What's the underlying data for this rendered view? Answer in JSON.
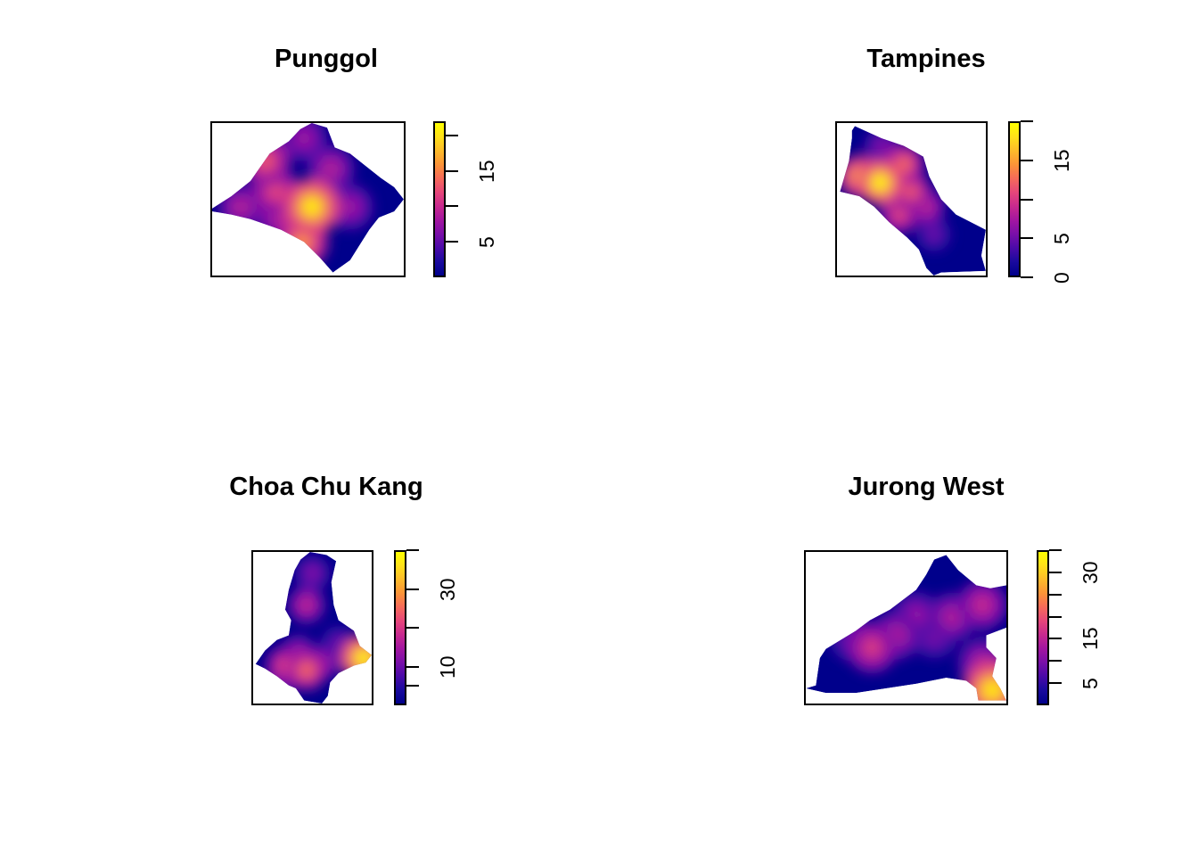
{
  "colors": {
    "palette": [
      "#00008B",
      "#1a0a9e",
      "#4b0aa8",
      "#7a0fa8",
      "#a316a0",
      "#c82a8e",
      "#e6467a",
      "#f66a5a",
      "#fb9338",
      "#fdbb2a",
      "#ffe01a",
      "#ffff00"
    ]
  },
  "chart_data": [
    {
      "type": "heatmap",
      "title": "Punggol",
      "legend": {
        "ticks": [
          5,
          10,
          15,
          20
        ],
        "labels": [
          "5",
          "",
          "15",
          ""
        ],
        "range": [
          0,
          22
        ]
      },
      "hotspots": [
        {
          "x": 0.52,
          "y": 0.55,
          "v": 21
        },
        {
          "x": 0.33,
          "y": 0.45,
          "v": 12
        },
        {
          "x": 0.47,
          "y": 0.78,
          "v": 16
        },
        {
          "x": 0.28,
          "y": 0.25,
          "v": 13
        },
        {
          "x": 0.72,
          "y": 0.55,
          "v": 8
        },
        {
          "x": 0.62,
          "y": 0.3,
          "v": 9
        },
        {
          "x": 0.48,
          "y": 0.1,
          "v": 8
        },
        {
          "x": 0.15,
          "y": 0.55,
          "v": 9
        },
        {
          "x": 0.35,
          "y": 0.6,
          "v": 10
        }
      ],
      "shape": [
        [
          0.0,
          0.56
        ],
        [
          0.1,
          0.48
        ],
        [
          0.2,
          0.38
        ],
        [
          0.3,
          0.2
        ],
        [
          0.4,
          0.12
        ],
        [
          0.46,
          0.04
        ],
        [
          0.52,
          0.0
        ],
        [
          0.6,
          0.03
        ],
        [
          0.64,
          0.16
        ],
        [
          0.72,
          0.2
        ],
        [
          0.8,
          0.28
        ],
        [
          0.88,
          0.36
        ],
        [
          0.95,
          0.42
        ],
        [
          1.0,
          0.5
        ],
        [
          0.95,
          0.58
        ],
        [
          0.87,
          0.62
        ],
        [
          0.82,
          0.7
        ],
        [
          0.77,
          0.8
        ],
        [
          0.72,
          0.9
        ],
        [
          0.63,
          0.98
        ],
        [
          0.56,
          0.88
        ],
        [
          0.48,
          0.78
        ],
        [
          0.36,
          0.7
        ],
        [
          0.2,
          0.63
        ],
        [
          0.1,
          0.6
        ],
        [
          0.0,
          0.58
        ]
      ]
    },
    {
      "type": "heatmap",
      "title": "Tampines",
      "legend": {
        "ticks": [
          0,
          5,
          10,
          15,
          20
        ],
        "labels": [
          "0",
          "5",
          "",
          "15",
          ""
        ],
        "range": [
          0,
          20
        ]
      },
      "hotspots": [
        {
          "x": 0.29,
          "y": 0.39,
          "v": 20
        },
        {
          "x": 0.15,
          "y": 0.35,
          "v": 16
        },
        {
          "x": 0.45,
          "y": 0.27,
          "v": 13
        },
        {
          "x": 0.5,
          "y": 0.45,
          "v": 12
        },
        {
          "x": 0.42,
          "y": 0.6,
          "v": 11
        },
        {
          "x": 0.6,
          "y": 0.55,
          "v": 9
        },
        {
          "x": 0.65,
          "y": 0.73,
          "v": 5
        },
        {
          "x": 0.3,
          "y": 0.15,
          "v": 6
        }
      ],
      "shape": [
        [
          0.1,
          0.05
        ],
        [
          0.12,
          0.02
        ],
        [
          0.3,
          0.1
        ],
        [
          0.45,
          0.15
        ],
        [
          0.58,
          0.22
        ],
        [
          0.62,
          0.35
        ],
        [
          0.7,
          0.5
        ],
        [
          0.8,
          0.6
        ],
        [
          1.0,
          0.7
        ],
        [
          0.97,
          0.87
        ],
        [
          1.0,
          0.97
        ],
        [
          0.7,
          0.98
        ],
        [
          0.65,
          1.0
        ],
        [
          0.6,
          0.95
        ],
        [
          0.55,
          0.83
        ],
        [
          0.47,
          0.75
        ],
        [
          0.35,
          0.65
        ],
        [
          0.25,
          0.55
        ],
        [
          0.15,
          0.48
        ],
        [
          0.02,
          0.45
        ],
        [
          0.08,
          0.25
        ],
        [
          0.1,
          0.1
        ]
      ]
    },
    {
      "type": "heatmap",
      "title": "Choa Chu Kang",
      "legend": {
        "ticks": [
          5,
          10,
          20,
          30,
          40
        ],
        "labels": [
          "",
          "10",
          "",
          "30",
          ""
        ],
        "range": [
          0,
          40
        ]
      },
      "hotspots": [
        {
          "x": 0.45,
          "y": 0.78,
          "v": 26
        },
        {
          "x": 0.27,
          "y": 0.75,
          "v": 22
        },
        {
          "x": 0.38,
          "y": 0.67,
          "v": 16
        },
        {
          "x": 0.6,
          "y": 0.72,
          "v": 14
        },
        {
          "x": 0.45,
          "y": 0.35,
          "v": 18
        },
        {
          "x": 0.5,
          "y": 0.14,
          "v": 12
        },
        {
          "x": 0.93,
          "y": 0.7,
          "v": 40
        },
        {
          "x": 0.72,
          "y": 0.6,
          "v": 10
        },
        {
          "x": 0.2,
          "y": 0.9,
          "v": 8
        }
      ],
      "shape": [
        [
          0.4,
          0.05
        ],
        [
          0.48,
          0.0
        ],
        [
          0.62,
          0.02
        ],
        [
          0.7,
          0.06
        ],
        [
          0.66,
          0.2
        ],
        [
          0.68,
          0.35
        ],
        [
          0.72,
          0.45
        ],
        [
          0.85,
          0.52
        ],
        [
          0.9,
          0.62
        ],
        [
          1.0,
          0.68
        ],
        [
          0.95,
          0.73
        ],
        [
          0.85,
          0.75
        ],
        [
          0.72,
          0.8
        ],
        [
          0.65,
          0.86
        ],
        [
          0.63,
          0.95
        ],
        [
          0.58,
          1.0
        ],
        [
          0.43,
          0.98
        ],
        [
          0.36,
          0.9
        ],
        [
          0.3,
          0.88
        ],
        [
          0.2,
          0.82
        ],
        [
          0.1,
          0.77
        ],
        [
          0.02,
          0.74
        ],
        [
          0.1,
          0.65
        ],
        [
          0.2,
          0.58
        ],
        [
          0.3,
          0.55
        ],
        [
          0.32,
          0.45
        ],
        [
          0.27,
          0.38
        ],
        [
          0.3,
          0.25
        ],
        [
          0.35,
          0.12
        ]
      ]
    },
    {
      "type": "heatmap",
      "title": "Jurong West",
      "legend": {
        "ticks": [
          5,
          10,
          15,
          20,
          25,
          30,
          35
        ],
        "labels": [
          "5",
          "",
          "15",
          "",
          "",
          "30",
          ""
        ],
        "range": [
          0,
          35
        ]
      },
      "hotspots": [
        {
          "x": 0.33,
          "y": 0.63,
          "v": 18
        },
        {
          "x": 0.45,
          "y": 0.55,
          "v": 14
        },
        {
          "x": 0.55,
          "y": 0.42,
          "v": 12
        },
        {
          "x": 0.73,
          "y": 0.43,
          "v": 14
        },
        {
          "x": 0.88,
          "y": 0.35,
          "v": 16
        },
        {
          "x": 0.93,
          "y": 0.91,
          "v": 33
        },
        {
          "x": 0.88,
          "y": 0.73,
          "v": 14
        },
        {
          "x": 0.23,
          "y": 0.57,
          "v": 9
        },
        {
          "x": 0.64,
          "y": 0.55,
          "v": 10
        }
      ],
      "shape": [
        [
          0.05,
          0.88
        ],
        [
          0.07,
          0.7
        ],
        [
          0.1,
          0.64
        ],
        [
          0.15,
          0.6
        ],
        [
          0.25,
          0.52
        ],
        [
          0.32,
          0.45
        ],
        [
          0.42,
          0.38
        ],
        [
          0.5,
          0.3
        ],
        [
          0.55,
          0.25
        ],
        [
          0.6,
          0.15
        ],
        [
          0.64,
          0.05
        ],
        [
          0.7,
          0.02
        ],
        [
          0.76,
          0.12
        ],
        [
          0.85,
          0.22
        ],
        [
          0.92,
          0.24
        ],
        [
          1.0,
          0.22
        ],
        [
          1.0,
          0.5
        ],
        [
          0.96,
          0.52
        ],
        [
          0.9,
          0.55
        ],
        [
          0.9,
          0.63
        ],
        [
          0.95,
          0.7
        ],
        [
          0.93,
          0.82
        ],
        [
          0.97,
          0.9
        ],
        [
          1.0,
          0.98
        ],
        [
          0.86,
          0.98
        ],
        [
          0.85,
          0.9
        ],
        [
          0.8,
          0.85
        ],
        [
          0.7,
          0.83
        ],
        [
          0.55,
          0.87
        ],
        [
          0.4,
          0.9
        ],
        [
          0.25,
          0.93
        ],
        [
          0.1,
          0.93
        ],
        [
          0.0,
          0.9
        ]
      ]
    }
  ]
}
